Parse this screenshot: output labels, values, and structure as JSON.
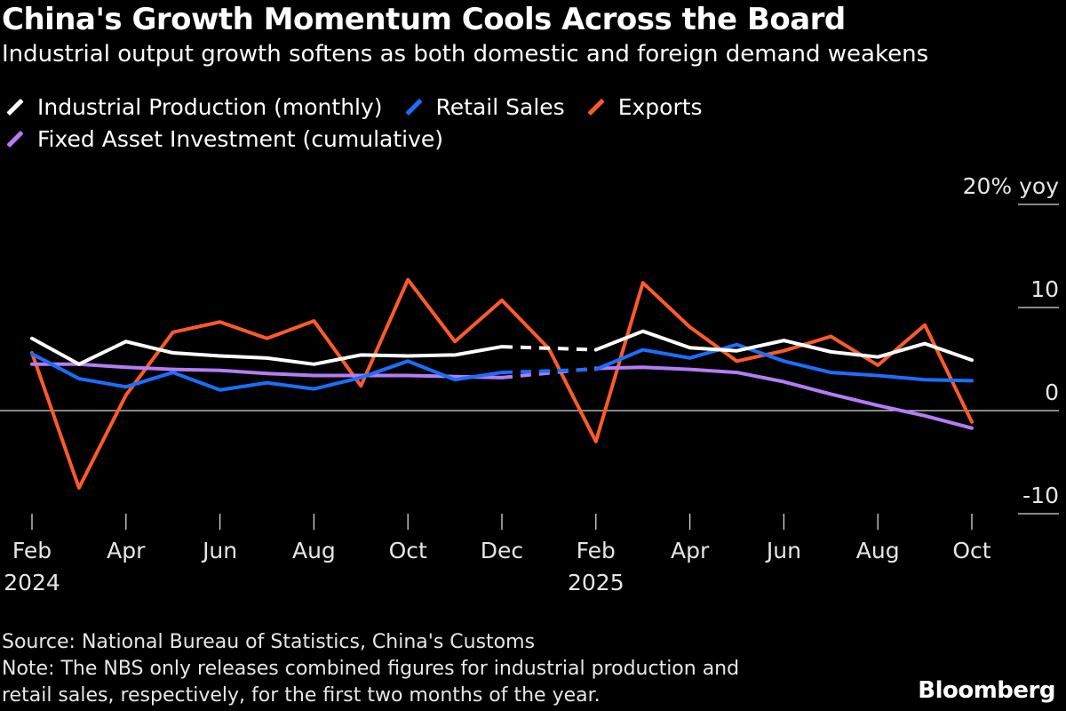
{
  "header": {
    "title": "China's Growth Momentum Cools Across the Board",
    "subtitle": "Industrial output growth softens as both domestic and foreign demand weakens"
  },
  "legend": [
    {
      "label": "Industrial Production (monthly)",
      "color": "#ffffff"
    },
    {
      "label": "Retail Sales",
      "color": "#1a6fff"
    },
    {
      "label": "Exports",
      "color": "#ff5a2a"
    },
    {
      "label": "Fixed Asset Investment (cumulative)",
      "color": "#b47cf5"
    }
  ],
  "chart_data": {
    "type": "line",
    "title": "China's Growth Momentum Cools Across the Board",
    "subtitle": "Industrial output growth softens as both domestic and foreign demand weakens",
    "ylabel": "20% yoy",
    "ylim": [
      -10,
      20
    ],
    "yticks": [
      {
        "value": 20,
        "label": "20% yoy"
      },
      {
        "value": 10,
        "label": "10"
      },
      {
        "value": 0,
        "label": "0"
      },
      {
        "value": -10,
        "label": "-10"
      }
    ],
    "x": [
      "2024-02",
      "2024-03",
      "2024-04",
      "2024-05",
      "2024-06",
      "2024-07",
      "2024-08",
      "2024-09",
      "2024-10",
      "2024-11",
      "2024-12",
      "2025-01",
      "2025-02",
      "2025-03",
      "2025-04",
      "2025-05",
      "2025-06",
      "2025-07",
      "2025-08",
      "2025-09",
      "2025-10"
    ],
    "xticks": [
      {
        "index": 0,
        "label": "Feb",
        "year": "2024"
      },
      {
        "index": 2,
        "label": "Apr",
        "year": ""
      },
      {
        "index": 4,
        "label": "Jun",
        "year": ""
      },
      {
        "index": 6,
        "label": "Aug",
        "year": ""
      },
      {
        "index": 8,
        "label": "Oct",
        "year": ""
      },
      {
        "index": 10,
        "label": "Dec",
        "year": ""
      },
      {
        "index": 12,
        "label": "Feb",
        "year": "2025"
      },
      {
        "index": 14,
        "label": "Apr",
        "year": ""
      },
      {
        "index": 16,
        "label": "Jun",
        "year": ""
      },
      {
        "index": 18,
        "label": "Aug",
        "year": ""
      },
      {
        "index": 20,
        "label": "Oct",
        "year": ""
      }
    ],
    "gap": {
      "from_index": 10,
      "to_index": 12
    },
    "series": [
      {
        "name": "Exports",
        "color": "#ff5a2a",
        "values": [
          5.6,
          -7.5,
          1.5,
          7.6,
          8.6,
          7.0,
          8.7,
          2.4,
          12.7,
          6.7,
          10.7,
          6.0,
          -3.0,
          12.4,
          8.1,
          4.8,
          5.8,
          7.2,
          4.4,
          8.3,
          -1.1
        ]
      },
      {
        "name": "Fixed Asset Investment (cumulative)",
        "color": "#b47cf5",
        "values": [
          4.5,
          4.5,
          4.2,
          4.0,
          3.9,
          3.6,
          3.4,
          3.4,
          3.4,
          3.3,
          3.2,
          null,
          4.1,
          4.2,
          4.0,
          3.7,
          2.8,
          1.6,
          0.5,
          -0.5,
          -1.7
        ]
      },
      {
        "name": "Retail Sales",
        "color": "#1a6fff",
        "values": [
          5.5,
          3.1,
          2.3,
          3.7,
          2.0,
          2.7,
          2.1,
          3.2,
          4.8,
          3.0,
          3.7,
          null,
          4.0,
          5.9,
          5.1,
          6.4,
          4.8,
          3.7,
          3.4,
          3.0,
          2.9
        ]
      },
      {
        "name": "Industrial Production (monthly)",
        "color": "#ffffff",
        "values": [
          7.0,
          4.5,
          6.7,
          5.6,
          5.3,
          5.1,
          4.5,
          5.4,
          5.3,
          5.4,
          6.2,
          null,
          5.9,
          7.7,
          6.1,
          5.8,
          6.8,
          5.7,
          5.2,
          6.5,
          4.9
        ]
      }
    ]
  },
  "footer": {
    "source": "Source: National Bureau of Statistics, China's Customs",
    "note_line1": "Note: The NBS only releases combined figures for industrial production and",
    "note_line2": "retail sales, respectively, for the first two months of the year."
  },
  "brand": "Bloomberg"
}
